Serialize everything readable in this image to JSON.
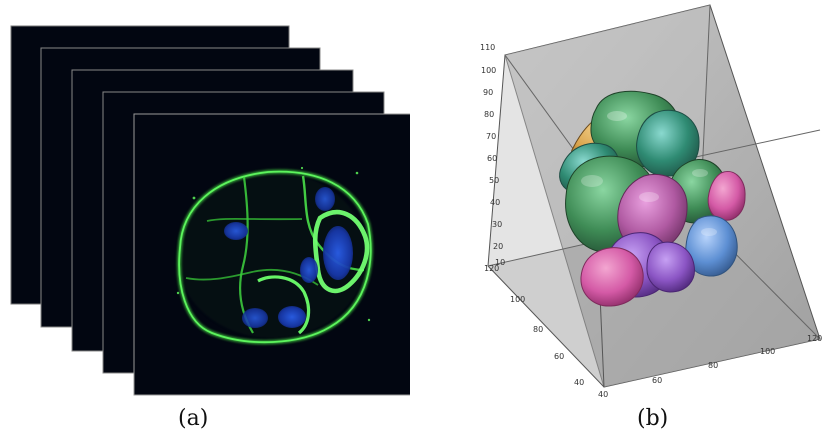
{
  "figure": {
    "panel_a": {
      "caption": "(a)",
      "stack_depth": 5
    },
    "panel_b": {
      "caption": "(b)",
      "z_ticks": [
        "10",
        "20",
        "30",
        "40",
        "50",
        "60",
        "70",
        "80",
        "90",
        "100",
        "110"
      ],
      "y_ticks": [
        "40",
        "60",
        "80",
        "100",
        "120"
      ],
      "x_ticks": [
        "40",
        "60",
        "80",
        "100",
        "120"
      ],
      "box_fill": "#b9b9b9",
      "cell_colors": [
        "#3f8c56",
        "#d9a34b",
        "#2f8b73",
        "#4f9f6b",
        "#d45aa6",
        "#b05aa2",
        "#8b55c4",
        "#5d8fd3",
        "#d64f9b",
        "#3b8b72"
      ]
    }
  }
}
